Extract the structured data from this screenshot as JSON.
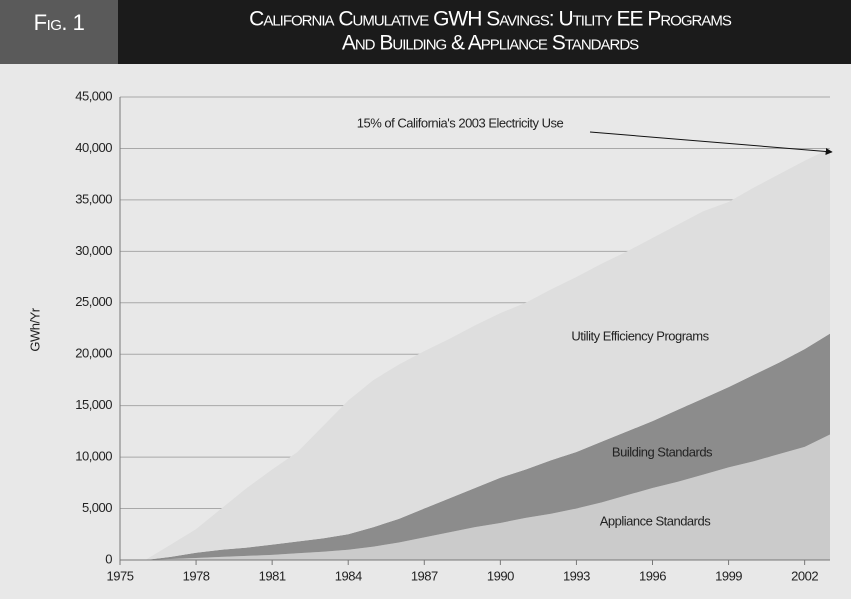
{
  "chart_data": {
    "type": "stacked_area",
    "fig_label": "Fig. 1",
    "title": [
      "California Cumulative GWH Savings: Utility EE Programs",
      "And Building & Appliance Standards"
    ],
    "y_label": "GWh/Yr",
    "annotation": "15% of California's 2003 Electricity Use",
    "x": [
      1975,
      1976,
      1977,
      1978,
      1979,
      1980,
      1981,
      1982,
      1983,
      1984,
      1985,
      1986,
      1987,
      1988,
      1989,
      1990,
      1991,
      1992,
      1993,
      1994,
      1995,
      1996,
      1997,
      1998,
      1999,
      2000,
      2001,
      2002,
      2003
    ],
    "series": [
      {
        "name": "Appliance Standards",
        "color": "#cbcbcb",
        "values": [
          0,
          0,
          100,
          200,
          300,
          400,
          500,
          650,
          800,
          1000,
          1300,
          1700,
          2200,
          2700,
          3200,
          3600,
          4100,
          4500,
          5000,
          5600,
          6300,
          7000,
          7600,
          8300,
          9000,
          9600,
          10300,
          11000,
          12200
        ]
      },
      {
        "name": "Building Standards",
        "color": "#8c8c8c",
        "values": [
          0,
          0,
          200,
          500,
          700,
          800,
          1000,
          1150,
          1300,
          1500,
          1900,
          2300,
          2800,
          3300,
          3800,
          4400,
          4700,
          5200,
          5500,
          5900,
          6200,
          6500,
          7000,
          7400,
          7800,
          8400,
          8900,
          9500,
          9800
        ]
      },
      {
        "name": "Utility Efficiency Programs",
        "color": "#dedede",
        "values": [
          0,
          0,
          1200,
          2300,
          4000,
          5800,
          7300,
          8700,
          10900,
          13000,
          14300,
          15000,
          15300,
          15500,
          15800,
          16000,
          16200,
          16600,
          17000,
          17300,
          17500,
          17800,
          18000,
          18200,
          18000,
          18200,
          18300,
          18300,
          18000
        ]
      }
    ],
    "xlim": [
      1975,
      2003
    ],
    "xticks": [
      1975,
      1978,
      1981,
      1984,
      1987,
      1990,
      1993,
      1996,
      1999,
      2002
    ],
    "ylim": [
      0,
      45000
    ],
    "yticks": [
      0,
      {
        "value": 5000,
        "label": "5,000"
      },
      {
        "value": 10000,
        "label": "10,000"
      },
      {
        "value": 15000,
        "label": "15,000"
      },
      {
        "value": 20000,
        "label": "20,000"
      },
      {
        "value": 25000,
        "label": "25,000"
      },
      {
        "value": 30000,
        "label": "30,000"
      },
      {
        "value": 35000,
        "label": "35,000"
      },
      {
        "value": 40000,
        "label": "40,000"
      },
      {
        "value": 45000,
        "label": "45,000"
      }
    ],
    "grid": true
  }
}
